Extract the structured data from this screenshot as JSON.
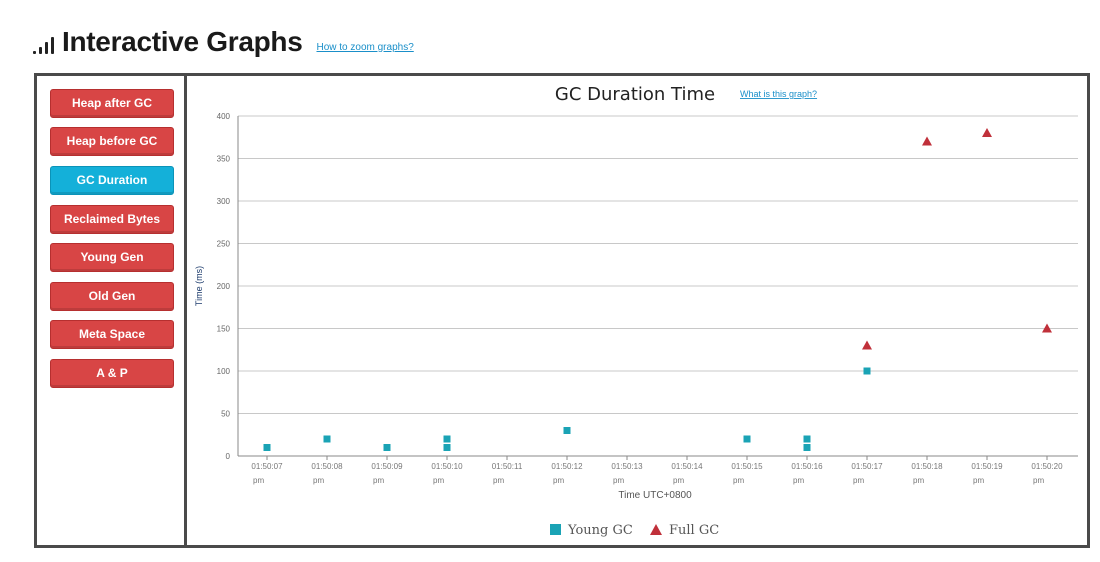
{
  "header": {
    "title": "Interactive Graphs",
    "help_link": "How to zoom graphs?"
  },
  "sidebar": {
    "items": [
      {
        "label": "Heap after GC",
        "active": false
      },
      {
        "label": "Heap before GC",
        "active": false
      },
      {
        "label": "GC Duration",
        "active": true
      },
      {
        "label": "Reclaimed Bytes",
        "active": false
      },
      {
        "label": "Young Gen",
        "active": false
      },
      {
        "label": "Old Gen",
        "active": false
      },
      {
        "label": "Meta Space",
        "active": false
      },
      {
        "label": "A & P",
        "active": false
      }
    ]
  },
  "colors": {
    "button_red": "#d84545",
    "button_active": "#14b0d9",
    "young_gc": "#1aa3b5",
    "full_gc": "#c0303a"
  },
  "chart_data": {
    "type": "scatter",
    "title": "GC Duration Time",
    "help_link": "What is this graph?",
    "xlabel": "Time UTC+0800",
    "ylabel": "Time (ms)",
    "ylim": [
      0,
      400
    ],
    "yticks": [
      0,
      50,
      100,
      150,
      200,
      250,
      300,
      350,
      400
    ],
    "categories": [
      "01:50:07 pm",
      "01:50:08 pm",
      "01:50:09 pm",
      "01:50:10 pm",
      "01:50:11 pm",
      "01:50:12 pm",
      "01:50:13 pm",
      "01:50:14 pm",
      "01:50:15 pm",
      "01:50:16 pm",
      "01:50:17 pm",
      "01:50:18 pm",
      "01:50:19 pm",
      "01:50:20 pm"
    ],
    "grid": true,
    "legend_position": "bottom-center",
    "series": [
      {
        "name": "Young GC",
        "marker": "square",
        "points": [
          {
            "x": "01:50:07 pm",
            "y": 10
          },
          {
            "x": "01:50:08 pm",
            "y": 20
          },
          {
            "x": "01:50:09 pm",
            "y": 10
          },
          {
            "x": "01:50:10 pm",
            "y": 20
          },
          {
            "x": "01:50:10 pm",
            "y": 10
          },
          {
            "x": "01:50:12 pm",
            "y": 30
          },
          {
            "x": "01:50:15 pm",
            "y": 20
          },
          {
            "x": "01:50:16 pm",
            "y": 20
          },
          {
            "x": "01:50:16 pm",
            "y": 10
          },
          {
            "x": "01:50:17 pm",
            "y": 100
          }
        ]
      },
      {
        "name": "Full GC",
        "marker": "triangle",
        "points": [
          {
            "x": "01:50:17 pm",
            "y": 130
          },
          {
            "x": "01:50:18 pm",
            "y": 370
          },
          {
            "x": "01:50:19 pm",
            "y": 380
          },
          {
            "x": "01:50:20 pm",
            "y": 150
          }
        ]
      }
    ]
  }
}
